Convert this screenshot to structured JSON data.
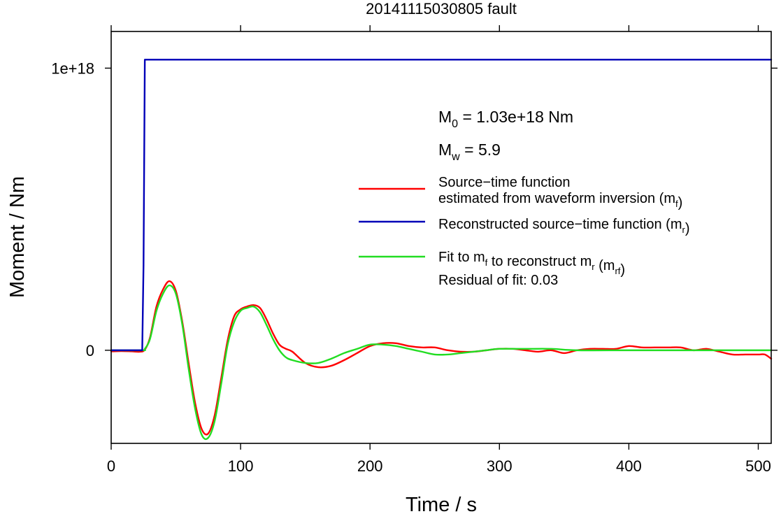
{
  "chart_data": {
    "type": "line",
    "title": "20141115030805 fault",
    "xlabel": "Time / s",
    "ylabel": "Moment / Nm",
    "xlim": [
      0,
      510
    ],
    "ylim": [
      -3.3e+17,
      1.13e+18
    ],
    "x_ticks": [
      0,
      100,
      200,
      300,
      400,
      500
    ],
    "y_ticks": [
      0,
      1e+18
    ],
    "y_tick_labels": [
      "0",
      "1e+18"
    ],
    "grid": false,
    "legend_position": "right",
    "annotations": {
      "m0_prefix": "M",
      "m0_sub": "0",
      "m0_value": " = 1.03e+18 Nm",
      "mw_prefix": "M",
      "mw_sub": "w",
      "mw_value": " = 5.9",
      "residual": "Residual of fit: 0.03"
    },
    "legend": [
      {
        "id": "mf",
        "color": "#ff0000",
        "lines": [
          [
            {
              "t": "Source−time function"
            }
          ],
          [
            {
              "t": "estimated from waveform inversion (m"
            },
            {
              "t": "f",
              "sub": true
            },
            {
              "t": ")"
            }
          ]
        ]
      },
      {
        "id": "mr",
        "color": "#0000b8",
        "lines": [
          [
            {
              "t": "Reconstructed source−time function (m"
            },
            {
              "t": "r",
              "sub": true
            },
            {
              "t": ")"
            }
          ]
        ]
      },
      {
        "id": "mrf",
        "color": "#22dd22",
        "lines": [
          [
            {
              "t": "Fit to m"
            },
            {
              "t": "f",
              "sub": true
            },
            {
              "t": " to reconstruct m"
            },
            {
              "t": "r",
              "sub": true
            },
            {
              "t": " (m"
            },
            {
              "t": "rf",
              "sub": true
            },
            {
              "t": ")"
            }
          ]
        ]
      }
    ],
    "series": [
      {
        "id": "mr",
        "color": "#0000b8",
        "x": [
          0,
          24,
          25,
          26,
          510
        ],
        "y": [
          0,
          0,
          3e+17,
          1.03e+18,
          1.03e+18
        ]
      },
      {
        "id": "mf",
        "color": "#ff0000",
        "x": [
          0,
          8,
          16,
          22,
          26,
          30,
          35,
          40,
          45,
          50,
          55,
          60,
          65,
          70,
          75,
          80,
          85,
          90,
          95,
          100,
          105,
          110,
          115,
          120,
          125,
          130,
          135,
          140,
          150,
          160,
          170,
          180,
          190,
          200,
          210,
          220,
          230,
          240,
          250,
          260,
          270,
          280,
          290,
          300,
          310,
          320,
          330,
          340,
          350,
          360,
          370,
          380,
          390,
          400,
          410,
          420,
          430,
          440,
          450,
          460,
          470,
          480,
          490,
          500,
          505,
          510
        ],
        "y": [
          -4000000000000000.0,
          -3000000000000000.0,
          -4000000000000000.0,
          -5000000000000000.0,
          2000000000000000.0,
          4.5e+16,
          1.55e+17,
          2.15e+17,
          2.45e+17,
          2.1e+17,
          1e+17,
          -5e+16,
          -1.9e+17,
          -2.8e+17,
          -2.95e+17,
          -2.3e+17,
          -1e+17,
          3.5e+16,
          1.2e+17,
          1.45e+17,
          1.55e+17,
          1.6e+17,
          1.5e+17,
          1.1e+17,
          6e+16,
          2e+16,
          5000000000000000.0,
          -5000000000000000.0,
          -4.5e+16,
          -6e+16,
          -5.5e+16,
          -3.5e+16,
          -1e+16,
          1.5e+16,
          2.5e+16,
          2.5e+16,
          1.5e+16,
          1e+16,
          1e+16,
          0,
          -5000000000000000.0,
          -5000000000000000.0,
          0,
          5000000000000000.0,
          5000000000000000.0,
          0,
          -5000000000000000.0,
          0,
          -1e+16,
          0,
          5000000000000000.0,
          5000000000000000.0,
          5000000000000000.0,
          1.5e+16,
          1e+16,
          1e+16,
          1e+16,
          1e+16,
          0,
          5000000000000000.0,
          -5000000000000000.0,
          -1.5e+16,
          -1.5e+16,
          -1.5e+16,
          -1.5e+16,
          -3e+16
        ]
      },
      {
        "id": "mrf",
        "color": "#22dd22",
        "x": [
          0,
          24,
          26,
          30,
          35,
          40,
          45,
          50,
          55,
          60,
          65,
          70,
          75,
          80,
          85,
          90,
          95,
          100,
          105,
          110,
          115,
          120,
          125,
          130,
          135,
          140,
          150,
          160,
          170,
          180,
          190,
          200,
          210,
          220,
          230,
          240,
          250,
          260,
          270,
          280,
          290,
          300,
          320,
          340,
          360,
          400,
          450,
          510
        ],
        "y": [
          0,
          0,
          5000000000000000.0,
          4e+16,
          1.4e+17,
          2e+17,
          2.3e+17,
          2e+17,
          9e+16,
          -7e+16,
          -2.1e+17,
          -3e+17,
          -3.1e+17,
          -2.5e+17,
          -1.2e+17,
          2e+16,
          1e+17,
          1.4e+17,
          1.5e+17,
          1.55e+17,
          1.35e+17,
          9e+16,
          4e+16,
          0,
          -2.5e+16,
          -3.5e+16,
          -4.5e+16,
          -4.5e+16,
          -3e+16,
          -1e+16,
          5000000000000000.0,
          2e+16,
          2e+16,
          1.5e+16,
          5000000000000000.0,
          -5000000000000000.0,
          -1.5e+16,
          -1.5e+16,
          -1e+16,
          -5000000000000000.0,
          0,
          5000000000000000.0,
          5000000000000000.0,
          5000000000000000.0,
          0,
          0,
          0,
          0
        ]
      }
    ]
  }
}
